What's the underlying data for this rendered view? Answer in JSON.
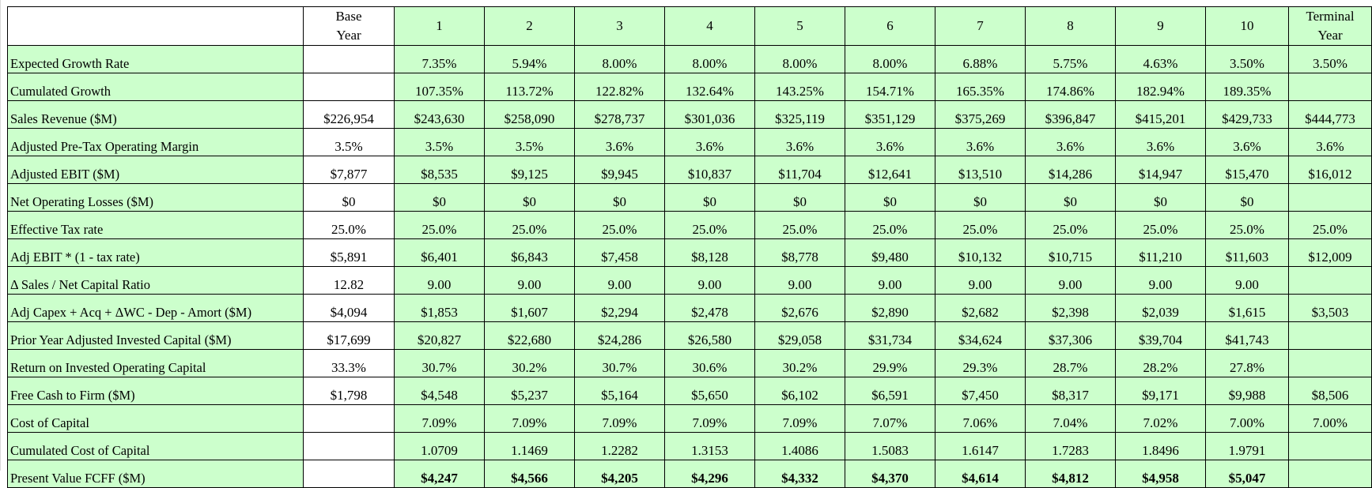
{
  "header": {
    "base_year": [
      "Base",
      "Year"
    ],
    "years": [
      "1",
      "2",
      "3",
      "4",
      "5",
      "6",
      "7",
      "8",
      "9",
      "10"
    ],
    "terminal_year": [
      "Terminal",
      "Year"
    ]
  },
  "rows": [
    {
      "label": "Expected Growth Rate",
      "base": "",
      "years": [
        "7.35%",
        "5.94%",
        "8.00%",
        "8.00%",
        "8.00%",
        "8.00%",
        "6.88%",
        "5.75%",
        "4.63%",
        "3.50%"
      ],
      "terminal": "3.50%"
    },
    {
      "label": "Cumulated Growth",
      "base": "",
      "years": [
        "107.35%",
        "113.72%",
        "122.82%",
        "132.64%",
        "143.25%",
        "154.71%",
        "165.35%",
        "174.86%",
        "182.94%",
        "189.35%"
      ],
      "terminal": ""
    },
    {
      "label": "Sales Revenue ($M)",
      "base": "$226,954",
      "years": [
        "$243,630",
        "$258,090",
        "$278,737",
        "$301,036",
        "$325,119",
        "$351,129",
        "$375,269",
        "$396,847",
        "$415,201",
        "$429,733"
      ],
      "terminal": "$444,773"
    },
    {
      "label": "Adjusted  Pre-Tax Operating Margin",
      "base": "3.5%",
      "years": [
        "3.5%",
        "3.5%",
        "3.6%",
        "3.6%",
        "3.6%",
        "3.6%",
        "3.6%",
        "3.6%",
        "3.6%",
        "3.6%"
      ],
      "terminal": "3.6%"
    },
    {
      "label": "Adjusted EBIT ($M)",
      "base": "$7,877",
      "years": [
        "$8,535",
        "$9,125",
        "$9,945",
        "$10,837",
        "$11,704",
        "$12,641",
        "$13,510",
        "$14,286",
        "$14,947",
        "$15,470"
      ],
      "terminal": "$16,012"
    },
    {
      "label": "Net Operating Losses ($M)",
      "base": "$0",
      "years": [
        "$0",
        "$0",
        "$0",
        "$0",
        "$0",
        "$0",
        "$0",
        "$0",
        "$0",
        "$0"
      ],
      "terminal": ""
    },
    {
      "label": "Effective Tax rate",
      "base": "25.0%",
      "years": [
        "25.0%",
        "25.0%",
        "25.0%",
        "25.0%",
        "25.0%",
        "25.0%",
        "25.0%",
        "25.0%",
        "25.0%",
        "25.0%"
      ],
      "terminal": "25.0%"
    },
    {
      "label": "Adj EBIT * (1 - tax rate)",
      "base": "$5,891",
      "years": [
        "$6,401",
        "$6,843",
        "$7,458",
        "$8,128",
        "$8,778",
        "$9,480",
        "$10,132",
        "$10,715",
        "$11,210",
        "$11,603"
      ],
      "terminal": "$12,009"
    },
    {
      "label": "Δ Sales / Net Capital Ratio",
      "base": "12.82",
      "years": [
        "9.00",
        "9.00",
        "9.00",
        "9.00",
        "9.00",
        "9.00",
        "9.00",
        "9.00",
        "9.00",
        "9.00"
      ],
      "terminal": ""
    },
    {
      "label": "Adj Capex + Acq + ΔWC - Dep - Amort ($M)",
      "base": "$4,094",
      "years": [
        "$1,853",
        "$1,607",
        "$2,294",
        "$2,478",
        "$2,676",
        "$2,890",
        "$2,682",
        "$2,398",
        "$2,039",
        "$1,615"
      ],
      "terminal": "$3,503"
    },
    {
      "label": "Prior Year Adjusted Invested Capital ($M)",
      "base": "$17,699",
      "years": [
        "$20,827",
        "$22,680",
        "$24,286",
        "$26,580",
        "$29,058",
        "$31,734",
        "$34,624",
        "$37,306",
        "$39,704",
        "$41,743"
      ],
      "terminal": ""
    },
    {
      "label": "Return on Invested Operating Capital",
      "base": "33.3%",
      "years": [
        "30.7%",
        "30.2%",
        "30.7%",
        "30.6%",
        "30.2%",
        "29.9%",
        "29.3%",
        "28.7%",
        "28.2%",
        "27.8%"
      ],
      "terminal": ""
    },
    {
      "label": "Free Cash to Firm ($M)",
      "base": "$1,798",
      "years": [
        "$4,548",
        "$5,237",
        "$5,164",
        "$5,650",
        "$6,102",
        "$6,591",
        "$7,450",
        "$8,317",
        "$9,171",
        "$9,988"
      ],
      "terminal": "$8,506"
    },
    {
      "label": "Cost of Capital",
      "base": "",
      "years": [
        "7.09%",
        "7.09%",
        "7.09%",
        "7.09%",
        "7.09%",
        "7.07%",
        "7.06%",
        "7.04%",
        "7.02%",
        "7.00%"
      ],
      "terminal": "7.00%"
    },
    {
      "label": "Cumulated Cost of Capital",
      "base": "",
      "years": [
        "1.0709",
        "1.1469",
        "1.2282",
        "1.3153",
        "1.4086",
        "1.5083",
        "1.6147",
        "1.7283",
        "1.8496",
        "1.9791"
      ],
      "terminal": ""
    },
    {
      "label": "Present Value FCFF ($M)",
      "base": "",
      "years": [
        "$4,247",
        "$4,566",
        "$4,205",
        "$4,296",
        "$4,332",
        "$4,370",
        "$4,614",
        "$4,812",
        "$4,958",
        "$5,047"
      ],
      "terminal": "",
      "bold": true
    }
  ],
  "colors": {
    "cell_green": "#ccffcc",
    "cell_white": "#ffffff",
    "border": "#000000"
  }
}
